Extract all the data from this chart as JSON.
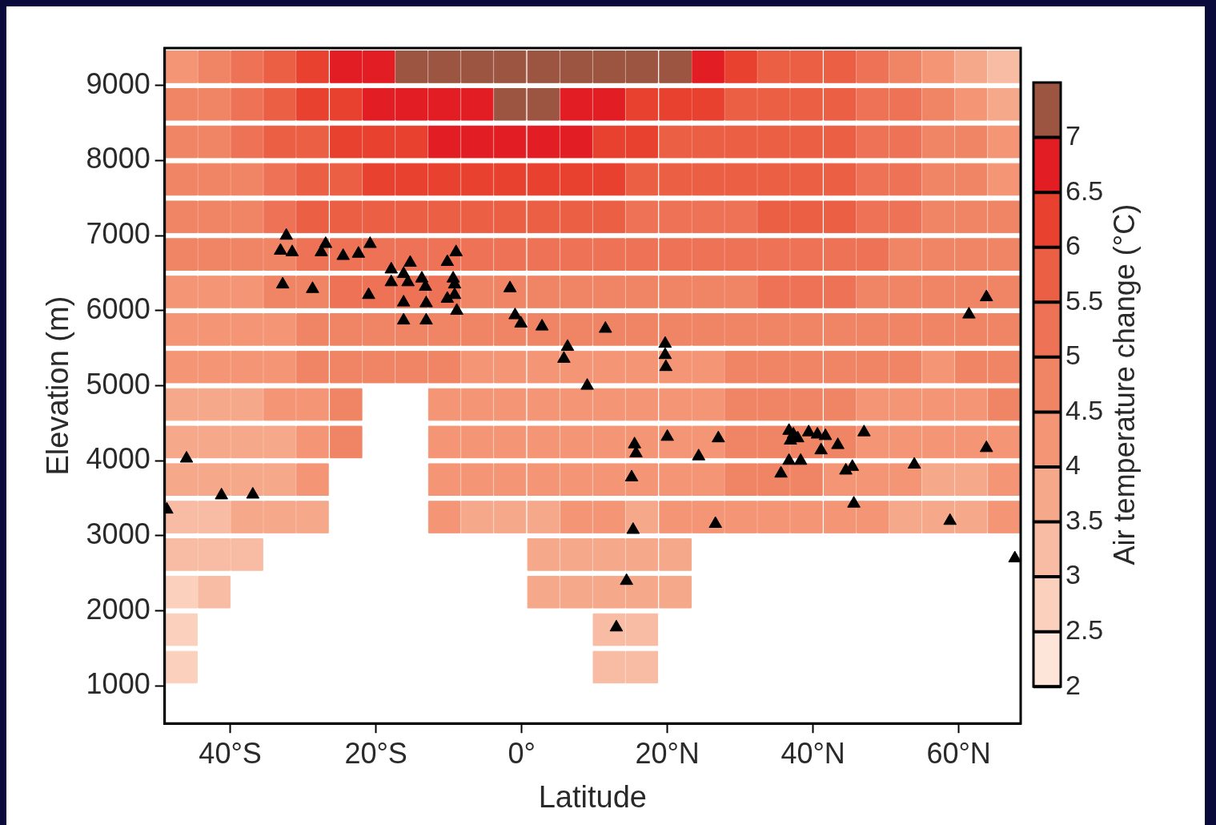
{
  "chart_data": {
    "type": "scatter",
    "xlabel": "Latitude",
    "ylabel": "Elevation (m)",
    "clabel": "Air temperature change (°C)",
    "xlim": [
      -49,
      68.5
    ],
    "xticks": [
      {
        "value": -40,
        "label": "40°S"
      },
      {
        "value": -20,
        "label": "20°S"
      },
      {
        "value": 0,
        "label": "0°"
      },
      {
        "value": 20,
        "label": "20°N"
      },
      {
        "value": 40,
        "label": "40°N"
      },
      {
        "value": 60,
        "label": "60°N"
      }
    ],
    "ylim": [
      500,
      9500
    ],
    "yticks": [
      1000,
      2000,
      3000,
      4000,
      5000,
      6000,
      7000,
      8000,
      9000
    ],
    "clim": [
      2,
      7.5
    ],
    "cticks": [
      2,
      2.5,
      3,
      3.5,
      4,
      4.5,
      5,
      5.5,
      6,
      6.5,
      7
    ],
    "colors": [
      "#fde5d9",
      "#fbd0bd",
      "#f8bba3",
      "#f6a88a",
      "#f49676",
      "#f08565",
      "#ee7356",
      "#eb5f45",
      "#e8412f",
      "#e31d24",
      "#9c5541"
    ],
    "grid": false,
    "legend": false,
    "series": [
      {
        "type": "scatter",
        "marker": "square",
        "x": [
          -46.7,
          -42.2,
          -37.7,
          -33.2,
          -28.7,
          -24.1,
          -19.6,
          -15.1,
          -10.6,
          -6.1,
          -1.6,
          3.0,
          7.5,
          12.0,
          16.5,
          21.1,
          25.6,
          30.1,
          34.6,
          39.1,
          43.7,
          48.2,
          52.7,
          57.2,
          61.7,
          66.2
        ],
        "values": [
          9250,
          9250,
          9250,
          9250,
          9250,
          9250,
          9250,
          9250,
          9250,
          9250,
          9250,
          9250,
          9250,
          9250,
          9250,
          9250,
          9250,
          9250,
          9250,
          9250,
          9250,
          9250,
          9250,
          9250,
          9250,
          9250
        ],
        "cvalues": [
          4.25,
          4.75,
          5.25,
          5.75,
          6.25,
          6.75,
          6.75,
          7.25,
          7.25,
          7.25,
          7.25,
          7.25,
          7.25,
          7.25,
          7.25,
          7.25,
          6.75,
          6.25,
          5.75,
          5.75,
          5.75,
          5.25,
          4.75,
          4.25,
          3.75,
          3.25
        ],
        "colors": [
          "#f49676",
          "#f08565",
          "#ee7356",
          "#eb5f45",
          "#e8412f",
          "#e31d24",
          "#e31d24",
          "#9c5541",
          "#9c5541",
          "#9c5541",
          "#9c5541",
          "#9c5541",
          "#9c5541",
          "#9c5541",
          "#9c5541",
          "#9c5541",
          "#e31d24",
          "#e8412f",
          "#eb5f45",
          "#eb5f45",
          "#eb5f45",
          "#ee7356",
          "#f08565",
          "#f49676",
          "#f6a88a",
          "#f8bba3"
        ]
      },
      {
        "type": "scatter",
        "marker": "square",
        "x": [
          -46.7,
          -42.2,
          -37.7,
          -33.2,
          -28.7,
          -24.1,
          -19.6,
          -15.1,
          -10.6,
          -6.1,
          -1.6,
          3.0,
          7.5,
          12.0,
          16.5,
          21.1,
          25.6,
          30.1,
          34.6,
          39.1,
          43.7,
          48.2,
          52.7,
          57.2,
          61.7,
          66.2
        ],
        "values": [
          8750,
          8750,
          8750,
          8750,
          8750,
          8750,
          8750,
          8750,
          8750,
          8750,
          8750,
          8750,
          8750,
          8750,
          8750,
          8750,
          8750,
          8750,
          8750,
          8750,
          8750,
          8750,
          8750,
          8750,
          8750,
          8750
        ],
        "cvalues": [
          4.75,
          4.75,
          5.25,
          5.75,
          6.25,
          6.25,
          6.75,
          6.75,
          6.75,
          6.75,
          7.25,
          7.25,
          6.75,
          6.75,
          6.25,
          6.25,
          6.25,
          5.75,
          5.75,
          5.75,
          5.75,
          5.25,
          5.25,
          4.75,
          4.25,
          3.75
        ],
        "colors": [
          "#f08565",
          "#f08565",
          "#ee7356",
          "#eb5f45",
          "#e8412f",
          "#e8412f",
          "#e31d24",
          "#e31d24",
          "#e31d24",
          "#e31d24",
          "#9c5541",
          "#9c5541",
          "#e31d24",
          "#e31d24",
          "#e8412f",
          "#e8412f",
          "#e8412f",
          "#eb5f45",
          "#eb5f45",
          "#eb5f45",
          "#eb5f45",
          "#ee7356",
          "#ee7356",
          "#f08565",
          "#f49676",
          "#f6a88a"
        ]
      },
      {
        "type": "scatter",
        "marker": "square",
        "x": [
          -46.7,
          -42.2,
          -37.7,
          -33.2,
          -28.7,
          -24.1,
          -19.6,
          -15.1,
          -10.6,
          -6.1,
          -1.6,
          3.0,
          7.5,
          12.0,
          16.5,
          21.1,
          25.6,
          30.1,
          34.6,
          39.1,
          43.7,
          48.2,
          52.7,
          57.2,
          61.7,
          66.2
        ],
        "values": [
          8250,
          8250,
          8250,
          8250,
          8250,
          8250,
          8250,
          8250,
          8250,
          8250,
          8250,
          8250,
          8250,
          8250,
          8250,
          8250,
          8250,
          8250,
          8250,
          8250,
          8250,
          8250,
          8250,
          8250,
          8250,
          8250
        ],
        "cvalues": [
          4.75,
          4.75,
          5.25,
          5.75,
          5.75,
          6.25,
          6.25,
          6.25,
          6.75,
          6.75,
          6.75,
          6.75,
          6.75,
          6.25,
          6.25,
          5.75,
          5.75,
          5.75,
          5.75,
          5.75,
          5.75,
          5.25,
          5.25,
          4.75,
          4.75,
          4.25
        ],
        "colors": [
          "#f08565",
          "#f08565",
          "#ee7356",
          "#eb5f45",
          "#eb5f45",
          "#e8412f",
          "#e8412f",
          "#e8412f",
          "#e31d24",
          "#e31d24",
          "#e31d24",
          "#e31d24",
          "#e31d24",
          "#e8412f",
          "#e8412f",
          "#eb5f45",
          "#eb5f45",
          "#eb5f45",
          "#eb5f45",
          "#eb5f45",
          "#eb5f45",
          "#ee7356",
          "#ee7356",
          "#f08565",
          "#f08565",
          "#f49676"
        ]
      },
      {
        "type": "scatter",
        "marker": "square",
        "x": [
          -46.7,
          -42.2,
          -37.7,
          -33.2,
          -28.7,
          -24.1,
          -19.6,
          -15.1,
          -10.6,
          -6.1,
          -1.6,
          3.0,
          7.5,
          12.0,
          16.5,
          21.1,
          25.6,
          30.1,
          34.6,
          39.1,
          43.7,
          48.2,
          52.7,
          57.2,
          61.7,
          66.2
        ],
        "values": [
          7750,
          7750,
          7750,
          7750,
          7750,
          7750,
          7750,
          7750,
          7750,
          7750,
          7750,
          7750,
          7750,
          7750,
          7750,
          7750,
          7750,
          7750,
          7750,
          7750,
          7750,
          7750,
          7750,
          7750,
          7750,
          7750
        ],
        "cvalues": [
          4.75,
          4.75,
          4.75,
          5.25,
          5.75,
          5.75,
          6.25,
          6.25,
          6.25,
          6.25,
          6.25,
          6.25,
          6.25,
          6.25,
          5.75,
          5.75,
          5.75,
          5.75,
          5.75,
          5.75,
          5.75,
          5.25,
          5.25,
          4.75,
          4.75,
          4.25
        ],
        "colors": [
          "#f08565",
          "#f08565",
          "#f08565",
          "#ee7356",
          "#eb5f45",
          "#eb5f45",
          "#e8412f",
          "#e8412f",
          "#e8412f",
          "#e8412f",
          "#e8412f",
          "#e8412f",
          "#e8412f",
          "#e8412f",
          "#eb5f45",
          "#eb5f45",
          "#eb5f45",
          "#eb5f45",
          "#eb5f45",
          "#eb5f45",
          "#eb5f45",
          "#ee7356",
          "#ee7356",
          "#f08565",
          "#f08565",
          "#f49676"
        ]
      },
      {
        "type": "scatter",
        "marker": "square",
        "x": [
          -46.7,
          -42.2,
          -37.7,
          -33.2,
          -28.7,
          -24.1,
          -19.6,
          -15.1,
          -10.6,
          -6.1,
          -1.6,
          3.0,
          7.5,
          12.0,
          16.5,
          21.1,
          25.6,
          30.1,
          34.6,
          39.1,
          43.7,
          48.2,
          52.7,
          57.2,
          61.7,
          66.2
        ],
        "values": [
          7250,
          7250,
          7250,
          7250,
          7250,
          7250,
          7250,
          7250,
          7250,
          7250,
          7250,
          7250,
          7250,
          7250,
          7250,
          7250,
          7250,
          7250,
          7250,
          7250,
          7250,
          7250,
          7250,
          7250,
          7250,
          7250
        ],
        "cvalues": [
          4.75,
          4.75,
          4.75,
          5.25,
          5.75,
          5.75,
          5.75,
          5.75,
          5.75,
          5.75,
          5.75,
          5.75,
          5.75,
          5.75,
          5.25,
          5.25,
          5.25,
          5.25,
          5.75,
          5.75,
          5.75,
          5.25,
          5.25,
          4.75,
          4.75,
          4.75
        ],
        "colors": [
          "#f08565",
          "#f08565",
          "#f08565",
          "#ee7356",
          "#eb5f45",
          "#eb5f45",
          "#eb5f45",
          "#eb5f45",
          "#eb5f45",
          "#eb5f45",
          "#eb5f45",
          "#eb5f45",
          "#eb5f45",
          "#eb5f45",
          "#ee7356",
          "#ee7356",
          "#ee7356",
          "#ee7356",
          "#eb5f45",
          "#eb5f45",
          "#eb5f45",
          "#ee7356",
          "#ee7356",
          "#f08565",
          "#f08565",
          "#f08565"
        ]
      },
      {
        "type": "scatter",
        "marker": "square",
        "x": [
          -46.7,
          -42.2,
          -37.7,
          -33.2,
          -28.7,
          -24.1,
          -19.6,
          -15.1,
          -10.6,
          -6.1,
          -1.6,
          3.0,
          7.5,
          12.0,
          16.5,
          21.1,
          25.6,
          30.1,
          34.6,
          39.1,
          43.7,
          48.2,
          52.7,
          57.2,
          61.7,
          66.2
        ],
        "values": [
          6750,
          6750,
          6750,
          6750,
          6750,
          6750,
          6750,
          6750,
          6750,
          6750,
          6750,
          6750,
          6750,
          6750,
          6750,
          6750,
          6750,
          6750,
          6750,
          6750,
          6750,
          6750,
          6750,
          6750,
          6750,
          6750
        ],
        "cvalues": [
          4.75,
          4.75,
          4.75,
          4.75,
          5.25,
          5.25,
          5.25,
          5.25,
          5.25,
          5.25,
          5.25,
          5.25,
          5.25,
          5.25,
          5.25,
          5.25,
          5.25,
          5.25,
          5.25,
          5.25,
          5.25,
          5.25,
          4.75,
          4.75,
          4.75,
          4.75
        ],
        "colors": [
          "#f08565",
          "#f08565",
          "#f08565",
          "#f08565",
          "#ee7356",
          "#ee7356",
          "#ee7356",
          "#ee7356",
          "#ee7356",
          "#ee7356",
          "#ee7356",
          "#ee7356",
          "#ee7356",
          "#ee7356",
          "#ee7356",
          "#ee7356",
          "#ee7356",
          "#ee7356",
          "#ee7356",
          "#ee7356",
          "#ee7356",
          "#ee7356",
          "#f08565",
          "#f08565",
          "#f08565",
          "#f08565"
        ]
      },
      {
        "type": "scatter",
        "marker": "square",
        "x": [
          -46.7,
          -42.2,
          -37.7,
          -33.2,
          -28.7,
          -24.1,
          -19.6,
          -15.1,
          -10.6,
          -6.1,
          -1.6,
          3.0,
          7.5,
          12.0,
          16.5,
          21.1,
          25.6,
          30.1,
          34.6,
          39.1,
          43.7,
          48.2,
          52.7,
          57.2,
          61.7,
          66.2
        ],
        "values": [
          6250,
          6250,
          6250,
          6250,
          6250,
          6250,
          6250,
          6250,
          6250,
          6250,
          6250,
          6250,
          6250,
          6250,
          6250,
          6250,
          6250,
          6250,
          6250,
          6250,
          6250,
          6250,
          6250,
          6250,
          6250,
          6250
        ],
        "cvalues": [
          4.25,
          4.25,
          4.25,
          4.75,
          4.75,
          5.25,
          5.25,
          5.25,
          5.25,
          4.75,
          4.75,
          4.75,
          4.75,
          4.75,
          4.75,
          4.75,
          4.75,
          4.75,
          5.25,
          5.25,
          5.25,
          4.75,
          4.75,
          4.75,
          4.75,
          4.75
        ],
        "colors": [
          "#f49676",
          "#f49676",
          "#f49676",
          "#f08565",
          "#f08565",
          "#ee7356",
          "#ee7356",
          "#ee7356",
          "#ee7356",
          "#f08565",
          "#f08565",
          "#f08565",
          "#f08565",
          "#f08565",
          "#f08565",
          "#f08565",
          "#f08565",
          "#f08565",
          "#ee7356",
          "#ee7356",
          "#ee7356",
          "#f08565",
          "#f08565",
          "#f08565",
          "#f08565",
          "#f08565"
        ]
      },
      {
        "type": "scatter",
        "marker": "square",
        "x": [
          -46.7,
          -42.2,
          -37.7,
          -33.2,
          -28.7,
          -24.1,
          -19.6,
          -15.1,
          -10.6,
          -6.1,
          -1.6,
          3.0,
          7.5,
          12.0,
          16.5,
          21.1,
          25.6,
          30.1,
          34.6,
          39.1,
          43.7,
          48.2,
          52.7,
          57.2,
          61.7,
          66.2
        ],
        "values": [
          5750,
          5750,
          5750,
          5750,
          5750,
          5750,
          5750,
          5750,
          5750,
          5750,
          5750,
          5750,
          5750,
          5750,
          5750,
          5750,
          5750,
          5750,
          5750,
          5750,
          5750,
          5750,
          5750,
          5750,
          5750,
          5750
        ],
        "cvalues": [
          4.25,
          4.25,
          4.25,
          4.25,
          4.75,
          4.75,
          4.75,
          4.75,
          4.75,
          4.75,
          4.75,
          4.75,
          4.75,
          4.75,
          4.75,
          4.75,
          4.75,
          4.75,
          4.75,
          4.75,
          4.75,
          4.75,
          4.75,
          4.75,
          4.75,
          4.75
        ],
        "colors": [
          "#f49676",
          "#f49676",
          "#f49676",
          "#f49676",
          "#f08565",
          "#f08565",
          "#f08565",
          "#f08565",
          "#f08565",
          "#f08565",
          "#f08565",
          "#f08565",
          "#f08565",
          "#f08565",
          "#f08565",
          "#f08565",
          "#f08565",
          "#f08565",
          "#f08565",
          "#f08565",
          "#f08565",
          "#f08565",
          "#f08565",
          "#f08565",
          "#f08565",
          "#f08565"
        ]
      },
      {
        "type": "scatter",
        "marker": "square",
        "x": [
          -46.7,
          -42.2,
          -37.7,
          -33.2,
          -28.7,
          -24.1,
          -19.6,
          -15.1,
          -10.6,
          -6.1,
          -1.6,
          3.0,
          7.5,
          12.0,
          16.5,
          21.1,
          25.6,
          30.1,
          34.6,
          39.1,
          43.7,
          48.2,
          52.7,
          57.2,
          61.7,
          66.2
        ],
        "values": [
          5250,
          5250,
          5250,
          5250,
          5250,
          5250,
          5250,
          5250,
          5250,
          5250,
          5250,
          5250,
          5250,
          5250,
          5250,
          5250,
          5250,
          5250,
          5250,
          5250,
          5250,
          5250,
          5250,
          5250,
          5250,
          5250
        ],
        "cvalues": [
          4.25,
          4.25,
          4.25,
          4.25,
          4.75,
          4.75,
          4.75,
          4.75,
          4.75,
          4.25,
          4.25,
          4.25,
          4.25,
          4.25,
          4.25,
          4.25,
          4.25,
          4.75,
          4.75,
          4.75,
          4.75,
          4.75,
          4.75,
          4.25,
          4.75,
          4.75
        ],
        "colors": [
          "#f49676",
          "#f49676",
          "#f49676",
          "#f49676",
          "#f08565",
          "#f08565",
          "#f08565",
          "#f08565",
          "#f08565",
          "#f49676",
          "#f49676",
          "#f49676",
          "#f49676",
          "#f49676",
          "#f49676",
          "#f49676",
          "#f49676",
          "#f08565",
          "#f08565",
          "#f08565",
          "#f08565",
          "#f08565",
          "#f08565",
          "#f49676",
          "#f08565",
          "#f08565"
        ]
      },
      {
        "type": "scatter",
        "marker": "square",
        "x": [
          -46.7,
          -42.2,
          -37.7,
          -33.2,
          -28.7,
          -24.1,
          -10.6,
          -6.1,
          -1.6,
          3.0,
          7.5,
          12.0,
          16.5,
          21.1,
          25.6,
          30.1,
          34.6,
          39.1,
          43.7,
          48.2,
          52.7,
          57.2,
          61.7,
          66.2
        ],
        "values": [
          4750,
          4750,
          4750,
          4750,
          4750,
          4750,
          4750,
          4750,
          4750,
          4750,
          4750,
          4750,
          4750,
          4750,
          4750,
          4750,
          4750,
          4750,
          4750,
          4750,
          4750,
          4750,
          4750,
          4750
        ],
        "cvalues": [
          3.75,
          3.75,
          3.75,
          4.25,
          4.25,
          4.75,
          4.25,
          4.25,
          4.25,
          4.25,
          4.25,
          4.25,
          4.25,
          4.25,
          4.25,
          4.75,
          4.75,
          4.75,
          4.75,
          4.25,
          4.25,
          4.25,
          4.25,
          4.75
        ],
        "colors": [
          "#f6a88a",
          "#f6a88a",
          "#f6a88a",
          "#f49676",
          "#f49676",
          "#f08565",
          "#f49676",
          "#f49676",
          "#f49676",
          "#f49676",
          "#f49676",
          "#f49676",
          "#f49676",
          "#f49676",
          "#f49676",
          "#f08565",
          "#f08565",
          "#f08565",
          "#f08565",
          "#f49676",
          "#f49676",
          "#f49676",
          "#f49676",
          "#f08565"
        ]
      },
      {
        "type": "scatter",
        "marker": "square",
        "x": [
          -46.7,
          -42.2,
          -37.7,
          -33.2,
          -28.7,
          -24.1,
          -10.6,
          -6.1,
          -1.6,
          3.0,
          7.5,
          12.0,
          16.5,
          21.1,
          25.6,
          30.1,
          34.6,
          39.1,
          43.7,
          48.2,
          52.7,
          57.2,
          61.7,
          66.2
        ],
        "values": [
          4250,
          4250,
          4250,
          4250,
          4250,
          4250,
          4250,
          4250,
          4250,
          4250,
          4250,
          4250,
          4250,
          4250,
          4250,
          4250,
          4250,
          4250,
          4250,
          4250,
          4250,
          4250,
          4250,
          4250
        ],
        "cvalues": [
          3.75,
          3.75,
          3.75,
          3.75,
          4.25,
          4.75,
          4.25,
          4.25,
          4.25,
          4.25,
          4.25,
          4.25,
          4.25,
          4.25,
          4.25,
          4.75,
          4.75,
          4.75,
          4.75,
          4.25,
          4.25,
          4.25,
          4.25,
          4.25
        ],
        "colors": [
          "#f6a88a",
          "#f6a88a",
          "#f6a88a",
          "#f6a88a",
          "#f49676",
          "#f08565",
          "#f49676",
          "#f49676",
          "#f49676",
          "#f49676",
          "#f49676",
          "#f49676",
          "#f49676",
          "#f49676",
          "#f49676",
          "#f08565",
          "#f08565",
          "#f08565",
          "#f08565",
          "#f49676",
          "#f49676",
          "#f49676",
          "#f49676",
          "#f49676"
        ]
      },
      {
        "type": "scatter",
        "marker": "square",
        "x": [
          -46.7,
          -42.2,
          -37.7,
          -33.2,
          -28.7,
          -10.6,
          -6.1,
          -1.6,
          3.0,
          7.5,
          12.0,
          16.5,
          21.1,
          25.6,
          30.1,
          34.6,
          39.1,
          43.7,
          48.2,
          52.7,
          57.2,
          61.7,
          66.2
        ],
        "values": [
          3750,
          3750,
          3750,
          3750,
          3750,
          3750,
          3750,
          3750,
          3750,
          3750,
          3750,
          3750,
          3750,
          3750,
          3750,
          3750,
          3750,
          3750,
          3750,
          3750,
          3750,
          3750,
          3750
        ],
        "cvalues": [
          3.75,
          3.75,
          3.75,
          3.75,
          4.25,
          4.25,
          4.25,
          4.25,
          4.25,
          4.25,
          4.25,
          4.25,
          4.25,
          4.25,
          4.75,
          4.75,
          4.75,
          4.25,
          4.25,
          4.25,
          3.75,
          3.75,
          4.25
        ],
        "colors": [
          "#f6a88a",
          "#f6a88a",
          "#f6a88a",
          "#f6a88a",
          "#f49676",
          "#f49676",
          "#f49676",
          "#f49676",
          "#f49676",
          "#f49676",
          "#f49676",
          "#f49676",
          "#f49676",
          "#f49676",
          "#f08565",
          "#f08565",
          "#f08565",
          "#f49676",
          "#f49676",
          "#f49676",
          "#f6a88a",
          "#f6a88a",
          "#f49676"
        ]
      },
      {
        "type": "scatter",
        "marker": "square",
        "x": [
          -46.7,
          -42.2,
          -37.7,
          -33.2,
          -28.7,
          -10.6,
          -6.1,
          -1.6,
          3.0,
          7.5,
          12.0,
          16.5,
          21.1,
          25.6,
          30.1,
          34.6,
          39.1,
          43.7,
          48.2,
          52.7,
          57.2,
          61.7,
          66.2
        ],
        "values": [
          3250,
          3250,
          3250,
          3250,
          3250,
          3250,
          3250,
          3250,
          3250,
          3250,
          3250,
          3250,
          3250,
          3250,
          3250,
          3250,
          3250,
          3250,
          3250,
          3250,
          3250,
          3250,
          3250
        ],
        "cvalues": [
          3.25,
          3.25,
          3.75,
          3.75,
          3.75,
          4.25,
          3.75,
          3.75,
          3.75,
          4.25,
          4.25,
          3.75,
          4.25,
          4.25,
          4.25,
          4.25,
          4.25,
          4.25,
          4.25,
          3.75,
          3.75,
          3.75,
          4.25
        ],
        "colors": [
          "#f8bba3",
          "#f8bba3",
          "#f6a88a",
          "#f6a88a",
          "#f6a88a",
          "#f49676",
          "#f6a88a",
          "#f6a88a",
          "#f6a88a",
          "#f49676",
          "#f49676",
          "#f6a88a",
          "#f49676",
          "#f49676",
          "#f49676",
          "#f49676",
          "#f49676",
          "#f49676",
          "#f49676",
          "#f6a88a",
          "#f6a88a",
          "#f6a88a",
          "#f49676"
        ]
      },
      {
        "type": "scatter",
        "marker": "square",
        "x": [
          -46.7,
          -42.2,
          -37.7,
          3.0,
          7.5,
          12.0,
          16.5,
          21.1
        ],
        "values": [
          2750,
          2750,
          2750,
          2750,
          2750,
          2750,
          2750,
          2750
        ],
        "cvalues": [
          3.25,
          3.25,
          3.25,
          3.75,
          3.75,
          3.75,
          3.75,
          3.75
        ],
        "colors": [
          "#f8bba3",
          "#f8bba3",
          "#f8bba3",
          "#f6a88a",
          "#f6a88a",
          "#f6a88a",
          "#f6a88a",
          "#f6a88a"
        ]
      },
      {
        "type": "scatter",
        "marker": "square",
        "x": [
          -46.7,
          -42.2,
          3.0,
          7.5,
          12.0,
          16.5,
          21.1
        ],
        "values": [
          2250,
          2250,
          2250,
          2250,
          2250,
          2250,
          2250
        ],
        "cvalues": [
          2.75,
          3.25,
          3.75,
          3.75,
          3.75,
          3.75,
          3.75
        ],
        "colors": [
          "#fbd0bd",
          "#f8bba3",
          "#f6a88a",
          "#f6a88a",
          "#f6a88a",
          "#f6a88a",
          "#f6a88a"
        ]
      },
      {
        "type": "scatter",
        "marker": "square",
        "x": [
          -46.7,
          12.0,
          16.5
        ],
        "values": [
          1750,
          1750,
          1750
        ],
        "cvalues": [
          2.75,
          3.25,
          3.25
        ],
        "colors": [
          "#fbd0bd",
          "#f8bba3",
          "#f8bba3"
        ]
      },
      {
        "type": "scatter",
        "marker": "square",
        "x": [
          -46.7,
          12.0,
          16.5
        ],
        "values": [
          1250,
          1250,
          1250
        ],
        "cvalues": [
          2.75,
          3.25,
          3.25
        ],
        "colors": [
          "#fbd0bd",
          "#f8bba3",
          "#f8bba3"
        ]
      },
      {
        "type": "scatter",
        "color": "#000000",
        "marker": "triangle",
        "x": [
          -48.7,
          -46.0,
          -41.2,
          -36.9,
          -32.3,
          -33.1,
          -31.5,
          -32.8,
          -28.7,
          -26.9,
          -27.5,
          -24.5,
          -22.4,
          -20.8,
          -21.0,
          -17.9,
          -17.9,
          -15.3,
          -16.2,
          -15.6,
          -13.7,
          -13.2,
          -16.2,
          -13.1,
          -16.2,
          -13.1,
          -10.2,
          -9.0,
          -9.4,
          -9.2,
          -10.2,
          -9.2,
          -8.9,
          -1.6,
          -0.9,
          -0.1,
          2.8,
          6.3,
          5.8,
          11.5,
          9.0,
          19.7,
          19.7,
          19.8,
          15.5,
          15.7,
          15.1,
          20.0,
          27.0,
          24.3,
          36.7,
          37.3,
          36.9,
          37.9,
          39.4,
          40.6,
          41.7,
          43.4,
          41.1,
          36.7,
          38.3,
          35.6,
          44.5,
          45.4,
          47.0,
          45.6,
          53.9,
          58.8,
          63.8,
          26.6,
          15.3,
          14.4,
          13.0,
          67.7,
          61.4,
          63.8
        ],
        "values": [
          3350,
          4030,
          3540,
          3550,
          7000,
          6800,
          6780,
          6350,
          6290,
          6890,
          6780,
          6730,
          6760,
          6890,
          6210,
          6550,
          6380,
          6640,
          6490,
          6380,
          6430,
          6320,
          6110,
          6100,
          5870,
          5870,
          6650,
          6780,
          6430,
          6350,
          6160,
          6210,
          6000,
          6300,
          5940,
          5830,
          5790,
          5520,
          5360,
          5760,
          5000,
          5560,
          5410,
          5250,
          4220,
          4100,
          3780,
          4320,
          4300,
          4060,
          4400,
          4350,
          4270,
          4300,
          4380,
          4350,
          4330,
          4210,
          4140,
          4000,
          4000,
          3830,
          3870,
          3920,
          4380,
          3430,
          3950,
          3200,
          4170,
          3160,
          3080,
          2400,
          1780,
          2700,
          5950,
          6180
        ]
      }
    ]
  }
}
